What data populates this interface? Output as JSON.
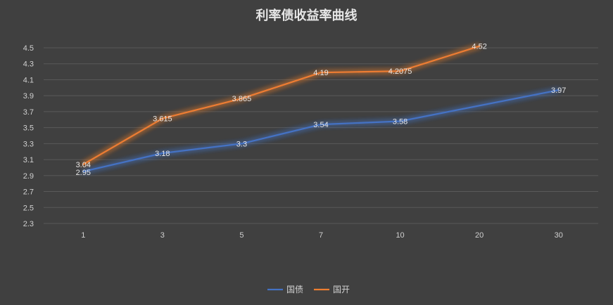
{
  "chart_data": {
    "type": "line",
    "title": "利率债收益率曲线",
    "categories": [
      "1",
      "3",
      "5",
      "7",
      "10",
      "20",
      "30"
    ],
    "y_ticks": [
      "2.3",
      "2.5",
      "2.7",
      "2.9",
      "3.1",
      "3.3",
      "3.5",
      "3.7",
      "3.9",
      "4.1",
      "4.3",
      "4.5"
    ],
    "ylim": [
      2.3,
      4.5
    ],
    "grid": true,
    "legend_position": "bottom",
    "series": [
      {
        "name": "国债",
        "color": "#4472c4",
        "values": [
          2.95,
          3.18,
          3.3,
          3.54,
          3.58,
          null,
          3.97
        ],
        "labels": [
          "2.95",
          "3.18",
          "3.3",
          "3.54",
          "3.58",
          null,
          "3.97"
        ],
        "connect_gaps": true
      },
      {
        "name": "国开",
        "color": "#ed7d31",
        "values": [
          3.04,
          3.615,
          3.865,
          4.19,
          4.2075,
          4.52,
          null
        ],
        "labels": [
          "3.04",
          "3.615",
          "3.865",
          "4.19",
          "4.2075",
          "4.52",
          null
        ],
        "connect_gaps": false
      }
    ]
  }
}
